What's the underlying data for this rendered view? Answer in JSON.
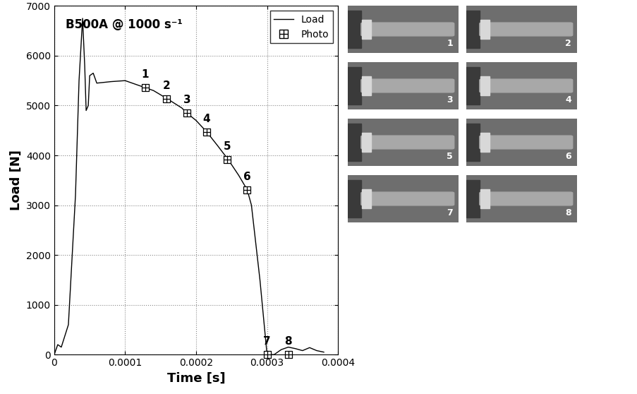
{
  "chart_data": {
    "type": "line",
    "title": "B500A @ 1000 s⁻¹",
    "x_label": "Time [s]",
    "y_label": "Load [N]",
    "xlim": [
      0,
      0.0004
    ],
    "xticks": [
      0,
      0.0001,
      0.0002,
      0.0003,
      0.0004
    ],
    "ylim": [
      0,
      7000
    ],
    "yticks": [
      0,
      1000,
      2000,
      3000,
      4000,
      5000,
      6000,
      7000
    ],
    "grid": true,
    "legend": "upper right",
    "series": [
      {
        "name": "Load",
        "type": "line",
        "color": "#000000",
        "line_style": "solid",
        "x": [
          0,
          5e-06,
          1e-05,
          2e-05,
          3e-05,
          3.5e-05,
          4e-05,
          4.3e-05,
          4.5e-05,
          4.8e-05,
          5e-05,
          5.5e-05,
          6e-05,
          8e-05,
          0.0001,
          0.00011,
          0.00012,
          0.000128,
          0.00014,
          0.00016,
          0.00018,
          0.000187,
          0.0002,
          0.000215,
          0.00023,
          0.000245,
          0.00026,
          0.000272,
          0.000278,
          0.00029,
          0.000298,
          0.0003,
          0.00031,
          0.00032,
          0.00033,
          0.00034,
          0.00035,
          0.00036,
          0.00037,
          0.00038
        ],
        "values": [
          0,
          200,
          150,
          600,
          3200,
          5500,
          6750,
          5800,
          4900,
          5000,
          5600,
          5650,
          5450,
          5480,
          5500,
          5450,
          5400,
          5360,
          5300,
          5130,
          4950,
          4850,
          4700,
          4470,
          4200,
          3920,
          3600,
          3310,
          3000,
          1500,
          300,
          0,
          0,
          100,
          150,
          120,
          80,
          140,
          80,
          50
        ]
      },
      {
        "name": "Photo",
        "type": "scatter",
        "color": "#000000",
        "marker": "squarecross",
        "x": [
          0.000128,
          0.000158,
          0.000187,
          0.000215,
          0.000244,
          0.000272,
          0.0003,
          0.00033
        ],
        "values": [
          5360,
          5130,
          4850,
          4470,
          3920,
          3310,
          0,
          0
        ],
        "point_labels": [
          "1",
          "2",
          "3",
          "4",
          "5",
          "6",
          "7",
          "8"
        ]
      }
    ]
  },
  "photos": {
    "labels": [
      "1",
      "2",
      "3",
      "4",
      "5",
      "6",
      "7",
      "8"
    ]
  }
}
